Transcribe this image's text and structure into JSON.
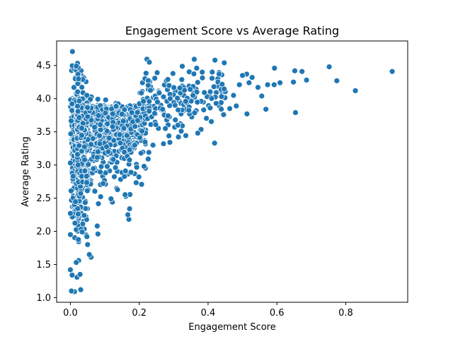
{
  "chart_data": {
    "type": "scatter",
    "title": "Engagement Score vs Average Rating",
    "xlabel": "Engagement Score",
    "ylabel": "Average Rating",
    "xlim": [
      -0.04,
      0.98
    ],
    "ylim": [
      0.93,
      4.87
    ],
    "xticks": [
      0.0,
      0.2,
      0.4,
      0.6,
      0.8
    ],
    "xtick_labels": [
      "0.0",
      "0.2",
      "0.4",
      "0.6",
      "0.8"
    ],
    "yticks": [
      1.0,
      1.5,
      2.0,
      2.5,
      3.0,
      3.5,
      4.0,
      4.5
    ],
    "ytick_labels": [
      "1.0",
      "1.5",
      "2.0",
      "2.5",
      "3.0",
      "3.5",
      "4.0",
      "4.5"
    ],
    "grid": false,
    "marker_color": "#1f77b4",
    "points": [
      [
        0.935,
        4.41
      ],
      [
        0.828,
        4.12
      ],
      [
        0.774,
        4.27
      ],
      [
        0.752,
        4.48
      ],
      [
        0.686,
        4.28
      ],
      [
        0.673,
        4.41
      ],
      [
        0.652,
        4.42
      ],
      [
        0.648,
        4.25
      ],
      [
        0.654,
        3.79
      ],
      [
        0.609,
        4.24
      ],
      [
        0.593,
        4.46
      ],
      [
        0.592,
        4.21
      ],
      [
        0.573,
        4.21
      ],
      [
        0.568,
        3.84
      ],
      [
        0.556,
        4.04
      ],
      [
        0.545,
        4.17
      ],
      [
        0.528,
        4.32
      ],
      [
        0.519,
        4.24
      ],
      [
        0.513,
        3.77
      ],
      [
        0.512,
        4.37
      ],
      [
        0.5,
        4.35
      ],
      [
        0.491,
        4.21
      ],
      [
        0.482,
        3.89
      ],
      [
        0.474,
        4.05
      ],
      [
        0.463,
        3.85
      ],
      [
        0.447,
        4.54
      ],
      [
        0.44,
        4.36
      ],
      [
        0.432,
        4.37
      ],
      [
        0.42,
        4.58
      ],
      [
        0.417,
        4.18
      ],
      [
        0.406,
        3.86
      ],
      [
        0.383,
        4.4
      ],
      [
        0.37,
        3.48
      ],
      [
        0.367,
        4.46
      ],
      [
        0.356,
        4.05
      ],
      [
        0.348,
        4.14
      ],
      [
        0.335,
        3.96
      ],
      [
        0.322,
        3.51
      ],
      [
        0.318,
        4.16
      ],
      [
        0.305,
        3.68
      ],
      [
        0.298,
        4.38
      ],
      [
        0.29,
        4.0
      ],
      [
        0.276,
        3.55
      ],
      [
        0.268,
        3.84
      ],
      [
        0.253,
        3.95
      ],
      [
        0.24,
        3.3
      ],
      [
        0.228,
        3.19
      ],
      [
        0.226,
        3.09
      ],
      [
        0.214,
        2.98
      ],
      [
        0.208,
        3.51
      ],
      [
        0.199,
        2.82
      ],
      [
        0.187,
        3.3
      ],
      [
        0.176,
        2.89
      ],
      [
        0.172,
        2.34
      ],
      [
        0.17,
        2.18
      ],
      [
        0.167,
        2.25
      ],
      [
        0.16,
        2.91
      ],
      [
        0.145,
        3.33
      ],
      [
        0.131,
        2.96
      ],
      [
        0.122,
        2.44
      ],
      [
        0.118,
        2.49
      ],
      [
        0.11,
        3.2
      ],
      [
        0.095,
        2.72
      ],
      [
        0.08,
        1.96
      ],
      [
        0.078,
        2.08
      ],
      [
        0.06,
        1.61
      ],
      [
        0.055,
        1.65
      ],
      [
        0.05,
        1.8
      ],
      [
        0.048,
        1.92
      ],
      [
        0.04,
        2.24
      ],
      [
        0.034,
        1.99
      ],
      [
        0.028,
        1.35
      ],
      [
        0.024,
        1.56
      ],
      [
        0.017,
        1.53
      ],
      [
        0.03,
        1.12
      ],
      [
        0.012,
        1.09
      ],
      [
        0.003,
        1.1
      ],
      [
        0.006,
        4.71
      ],
      [
        0.005,
        1.34
      ],
      [
        0.0,
        1.42
      ],
      [
        0.0,
        1.95
      ],
      [
        0.0,
        2.27
      ],
      [
        0.002,
        2.61
      ],
      [
        0.0,
        3.03
      ],
      [
        0.001,
        3.47
      ]
    ],
    "cloud_seed": 12345
  }
}
